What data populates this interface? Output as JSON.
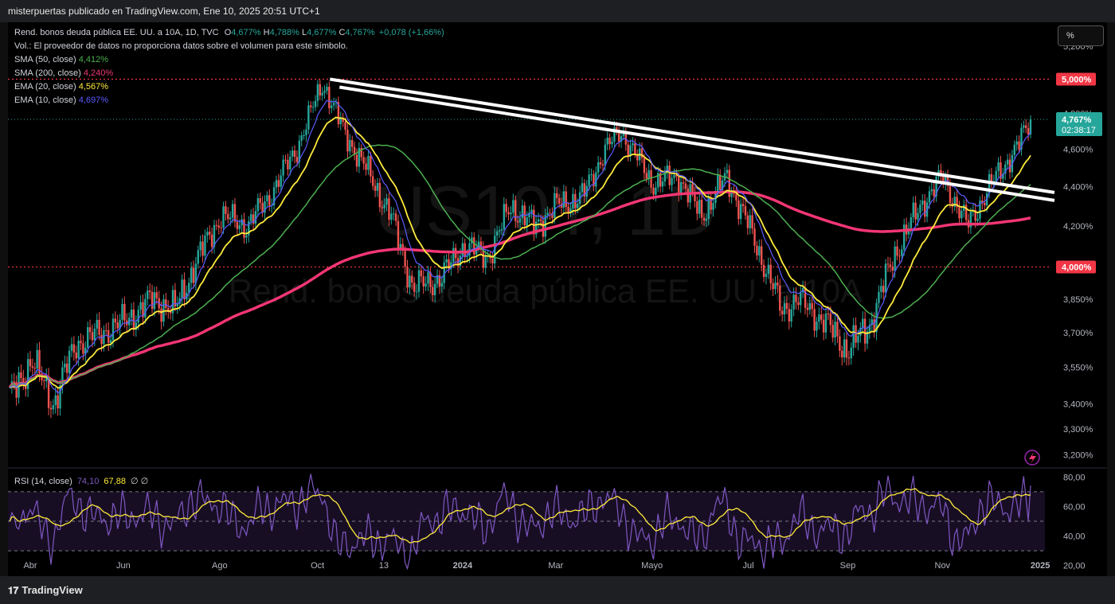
{
  "header": {
    "text": "misterpuertas publicado en TradingView.com, Ene 10, 2025 20:51 UTC+1"
  },
  "legend": {
    "symbol": "Rend. bonos deuda pública EE. UU. a 10A, 1D, TVC",
    "o_label": "O",
    "o_value": "4,677%",
    "h_label": "H",
    "h_value": "4,788%",
    "l_label": "L",
    "l_value": "4,677%",
    "c_label": "C",
    "c_value": "4,767%",
    "change": "+0,078 (+1,66%)",
    "volume": "Vol.: El proveedor de datos no proporciona datos sobre el volumen para este símbolo.",
    "indicators": [
      {
        "label": "SMA (50, close)",
        "value": "4,412%",
        "color": "#4caf50"
      },
      {
        "label": "SMA (200, close)",
        "value": "4,240%",
        "color": "#f23673"
      },
      {
        "label": "EMA (20, close)",
        "value": "4,567%",
        "color": "#ffeb3b"
      },
      {
        "label": "EMA (10, close)",
        "value": "4,697%",
        "color": "#5b5bff"
      }
    ]
  },
  "watermark": {
    "ticker": "US10Y, 1D",
    "name": "Rend. bonos deuda pública EE. UU. a 10A"
  },
  "scale_button": "%",
  "price_axis": {
    "ticks": [
      "5,200%",
      "4,800%",
      "4,600%",
      "4,400%",
      "4,200%",
      "3,850%",
      "3,700%",
      "3,550%",
      "3,400%",
      "3,300%",
      "3,200%"
    ],
    "levels": [
      {
        "label": "5,000%",
        "value": 5.0
      },
      {
        "label": "4,000%",
        "value": 4.0
      }
    ],
    "last": {
      "price": "4,767%",
      "countdown": "02:38:17"
    }
  },
  "rsi": {
    "label": "RSI (14, close)",
    "value1": "74,10",
    "value2": "67,88",
    "extra": "∅ ∅",
    "ticks": [
      "80,00",
      "60,00",
      "40,00",
      "20,00"
    ]
  },
  "time_axis": [
    "Abr",
    "Jun",
    "Ago",
    "Oct",
    "13",
    "2024",
    "Mar",
    "Mayo",
    "Jul",
    "Sep",
    "Nov",
    "2025"
  ],
  "footer": {
    "brand": "TradingView"
  },
  "colors": {
    "up": "#26a69a",
    "down": "#ef5350",
    "ema10": "#5b5bff",
    "ema20": "#ffeb3b",
    "sma50": "#4caf50",
    "sma200": "#f23673",
    "level": "#f23645",
    "trend": "#ffffff",
    "rsi": "#7e57c2",
    "rsi_ma": "#ffeb3b"
  },
  "chart_data": {
    "type": "candlestick",
    "title": "Rend. bonos deuda pública EE. UU. a 10A, 1D",
    "yunit": "%",
    "yscale": "log",
    "ylim": [
      3.15,
      5.35
    ],
    "dates": [
      "2023-04-03",
      "2023-04-17",
      "2023-05-01",
      "2023-05-15",
      "2023-06-01",
      "2023-06-15",
      "2023-07-03",
      "2023-07-17",
      "2023-08-01",
      "2023-08-15",
      "2023-09-01",
      "2023-09-15",
      "2023-10-02",
      "2023-10-19",
      "2023-11-01",
      "2023-11-15",
      "2023-12-01",
      "2023-12-15",
      "2024-01-02",
      "2024-01-16",
      "2024-02-01",
      "2024-02-15",
      "2024-03-01",
      "2024-03-15",
      "2024-04-01",
      "2024-04-15",
      "2024-04-25",
      "2024-05-15",
      "2024-06-01",
      "2024-06-15",
      "2024-07-01",
      "2024-07-15",
      "2024-08-05",
      "2024-08-15",
      "2024-09-01",
      "2024-09-16",
      "2024-10-01",
      "2024-10-15",
      "2024-11-01",
      "2024-11-15",
      "2024-12-01",
      "2024-12-15",
      "2025-01-02",
      "2025-01-10"
    ],
    "close": [
      3.42,
      3.58,
      3.4,
      3.65,
      3.7,
      3.75,
      3.85,
      3.8,
      4.05,
      4.25,
      4.2,
      4.35,
      4.6,
      4.98,
      4.7,
      4.5,
      4.25,
      3.9,
      3.95,
      4.1,
      4.05,
      4.3,
      4.2,
      4.3,
      4.35,
      4.6,
      4.7,
      4.42,
      4.45,
      4.25,
      4.45,
      4.2,
      3.8,
      3.85,
      3.75,
      3.62,
      3.75,
      4.05,
      4.3,
      4.45,
      4.2,
      4.4,
      4.62,
      4.767
    ],
    "levels": [
      5.0,
      4.0
    ],
    "trendline": {
      "start": {
        "date": "2023-10-19",
        "value": 5.0
      },
      "end": {
        "date": "2025-01-10",
        "value": 4.37
      }
    },
    "series": [
      {
        "name": "EMA (10, close)",
        "last": 4.697
      },
      {
        "name": "EMA (20, close)",
        "last": 4.567
      },
      {
        "name": "SMA (50, close)",
        "last": 4.412
      },
      {
        "name": "SMA (200, close)",
        "last": 4.24
      }
    ],
    "rsi_last": 74.1,
    "rsi_ma_last": 67.88,
    "rsi_ylim": [
      15,
      85
    ]
  }
}
